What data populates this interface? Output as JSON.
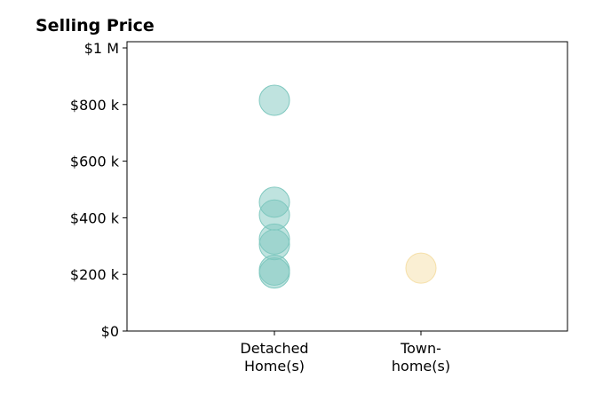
{
  "chart_data": {
    "type": "scatter",
    "title": "Selling Price",
    "xlabel": "",
    "ylabel": "",
    "categories": [
      [
        "Detached",
        "Home(s)"
      ],
      [
        "Town-",
        "home(s)"
      ]
    ],
    "ylim": [
      0,
      1000000
    ],
    "yticks": [
      {
        "value": 0,
        "label": "$0"
      },
      {
        "value": 200000,
        "label": "$200 k"
      },
      {
        "value": 400000,
        "label": "$400 k"
      },
      {
        "value": 600000,
        "label": "$600 k"
      },
      {
        "value": 800000,
        "label": "$800 k"
      },
      {
        "value": 1000000,
        "label": "$1 M"
      }
    ],
    "grid": false,
    "series": [
      {
        "category": 0,
        "color": "#7fc8bf",
        "values": [
          815000,
          455000,
          410000,
          325000,
          305000,
          215000,
          205000
        ]
      },
      {
        "category": 1,
        "color": "#f5dfa8",
        "values": [
          222000
        ]
      }
    ]
  }
}
